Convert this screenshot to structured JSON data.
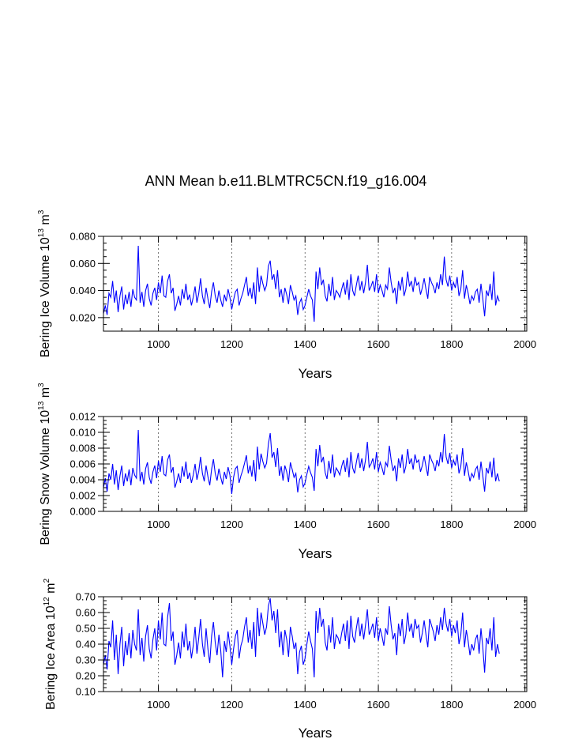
{
  "figure": {
    "title": "ANN Mean b.e11.BLMTRC5CN.f19_g16.004"
  },
  "colors": {
    "series": "#0000ff",
    "axes": "#000000",
    "grid": "#555555"
  },
  "chart_data": [
    {
      "type": "line",
      "ylabel": {
        "base": "Bering Ice Volume 10",
        "exp1": "13",
        "mid": " m",
        "exp2": "3"
      },
      "xlabel": "Years",
      "xlim": [
        850,
        2005
      ],
      "ylim": [
        0.01,
        0.08
      ],
      "xticks": [
        1000,
        1200,
        1400,
        1600,
        1800,
        2000
      ],
      "xtick_labels": [
        "1000",
        "1200",
        "1400",
        "1600",
        "1800",
        "2000"
      ],
      "yticks": [
        0.02,
        0.04,
        0.06,
        0.08
      ],
      "ytick_labels": [
        "0.020",
        "0.040",
        "0.060",
        "0.080"
      ],
      "grid_x": true,
      "series": [
        {
          "name": "Bering Ice Volume",
          "x_start": 850,
          "x_step": 5,
          "values": [
            0.023,
            0.029,
            0.022,
            0.038,
            0.035,
            0.047,
            0.031,
            0.04,
            0.024,
            0.036,
            0.043,
            0.026,
            0.037,
            0.03,
            0.039,
            0.028,
            0.041,
            0.035,
            0.033,
            0.073,
            0.031,
            0.039,
            0.028,
            0.04,
            0.045,
            0.034,
            0.029,
            0.038,
            0.042,
            0.033,
            0.046,
            0.038,
            0.051,
            0.036,
            0.035,
            0.047,
            0.052,
            0.038,
            0.042,
            0.025,
            0.03,
            0.036,
            0.029,
            0.041,
            0.034,
            0.045,
            0.033,
            0.037,
            0.029,
            0.035,
            0.043,
            0.031,
            0.038,
            0.049,
            0.036,
            0.03,
            0.042,
            0.034,
            0.027,
            0.039,
            0.046,
            0.036,
            0.031,
            0.04,
            0.033,
            0.028,
            0.037,
            0.032,
            0.041,
            0.035,
            0.026,
            0.033,
            0.039,
            0.041,
            0.029,
            0.034,
            0.038,
            0.044,
            0.05,
            0.036,
            0.042,
            0.034,
            0.046,
            0.03,
            0.057,
            0.039,
            0.051,
            0.045,
            0.04,
            0.044,
            0.058,
            0.062,
            0.048,
            0.052,
            0.041,
            0.055,
            0.035,
            0.041,
            0.031,
            0.042,
            0.037,
            0.03,
            0.044,
            0.039,
            0.033,
            0.036,
            0.022,
            0.031,
            0.034,
            0.026,
            0.029,
            0.035,
            0.041,
            0.036,
            0.033,
            0.017,
            0.054,
            0.041,
            0.057,
            0.044,
            0.048,
            0.036,
            0.032,
            0.045,
            0.036,
            0.05,
            0.033,
            0.04,
            0.038,
            0.035,
            0.041,
            0.046,
            0.037,
            0.048,
            0.033,
            0.052,
            0.04,
            0.036,
            0.044,
            0.051,
            0.04,
            0.047,
            0.038,
            0.046,
            0.059,
            0.04,
            0.043,
            0.047,
            0.039,
            0.052,
            0.038,
            0.044,
            0.04,
            0.035,
            0.044,
            0.041,
            0.057,
            0.046,
            0.038,
            0.042,
            0.03,
            0.047,
            0.04,
            0.05,
            0.036,
            0.041,
            0.054,
            0.043,
            0.047,
            0.039,
            0.05,
            0.044,
            0.046,
            0.037,
            0.042,
            0.049,
            0.041,
            0.034,
            0.05,
            0.046,
            0.043,
            0.038,
            0.046,
            0.041,
            0.052,
            0.044,
            0.065,
            0.048,
            0.043,
            0.051,
            0.04,
            0.046,
            0.042,
            0.05,
            0.036,
            0.041,
            0.055,
            0.034,
            0.044,
            0.038,
            0.03,
            0.036,
            0.033,
            0.039,
            0.041,
            0.031,
            0.045,
            0.034,
            0.021,
            0.04,
            0.036,
            0.045,
            0.033,
            0.054,
            0.029,
            0.036,
            0.032
          ]
        }
      ]
    },
    {
      "type": "line",
      "ylabel": {
        "base": "Bering Snow Volume 10",
        "exp1": "13",
        "mid": " m",
        "exp2": "3"
      },
      "xlabel": "Years",
      "xlim": [
        850,
        2005
      ],
      "ylim": [
        0.0,
        0.012
      ],
      "xticks": [
        1000,
        1200,
        1400,
        1600,
        1800,
        2000
      ],
      "xtick_labels": [
        "1000",
        "1200",
        "1400",
        "1600",
        "1800",
        "2000"
      ],
      "yticks": [
        0.0,
        0.002,
        0.004,
        0.006,
        0.008,
        0.01,
        0.012
      ],
      "ytick_labels": [
        "0.000",
        "0.002",
        "0.004",
        "0.006",
        "0.008",
        "0.010",
        "0.012"
      ],
      "grid_x": true,
      "series": [
        {
          "name": "Bering Snow Volume",
          "x_start": 850,
          "x_step": 5,
          "values": [
            0.003,
            0.0042,
            0.0025,
            0.0048,
            0.004,
            0.006,
            0.0034,
            0.0052,
            0.0027,
            0.0045,
            0.0058,
            0.0032,
            0.0048,
            0.0038,
            0.0053,
            0.0033,
            0.0055,
            0.0046,
            0.0042,
            0.0103,
            0.0038,
            0.005,
            0.0034,
            0.0054,
            0.0062,
            0.0043,
            0.0035,
            0.005,
            0.0058,
            0.0042,
            0.0064,
            0.005,
            0.007,
            0.0047,
            0.0045,
            0.0065,
            0.0072,
            0.0049,
            0.0056,
            0.003,
            0.0038,
            0.0048,
            0.0036,
            0.0057,
            0.0044,
            0.0063,
            0.0041,
            0.0049,
            0.0036,
            0.0046,
            0.006,
            0.004,
            0.0051,
            0.0069,
            0.0048,
            0.0038,
            0.0058,
            0.0044,
            0.0033,
            0.0053,
            0.0066,
            0.0048,
            0.0039,
            0.0054,
            0.0043,
            0.0034,
            0.005,
            0.0041,
            0.0056,
            0.0046,
            0.0022,
            0.0043,
            0.0054,
            0.0057,
            0.0036,
            0.0045,
            0.0052,
            0.0061,
            0.0071,
            0.0048,
            0.0058,
            0.0044,
            0.0065,
            0.0038,
            0.0082,
            0.0053,
            0.0073,
            0.0063,
            0.0055,
            0.0061,
            0.0085,
            0.0099,
            0.0068,
            0.0075,
            0.0056,
            0.008,
            0.0045,
            0.0057,
            0.0039,
            0.0058,
            0.005,
            0.0037,
            0.0062,
            0.0053,
            0.0043,
            0.0048,
            0.0024,
            0.004,
            0.0045,
            0.0031,
            0.0036,
            0.0047,
            0.0057,
            0.0049,
            0.0043,
            0.0026,
            0.0079,
            0.0057,
            0.0084,
            0.0062,
            0.0069,
            0.0049,
            0.0041,
            0.0064,
            0.0048,
            0.0072,
            0.0043,
            0.0055,
            0.0051,
            0.0046,
            0.0057,
            0.0065,
            0.005,
            0.0068,
            0.0043,
            0.0075,
            0.0055,
            0.0048,
            0.0062,
            0.0074,
            0.0055,
            0.0067,
            0.0051,
            0.0065,
            0.0088,
            0.0056,
            0.006,
            0.0067,
            0.0053,
            0.0075,
            0.005,
            0.0062,
            0.0055,
            0.0046,
            0.0062,
            0.0057,
            0.0083,
            0.0065,
            0.0051,
            0.0058,
            0.0038,
            0.0067,
            0.0055,
            0.0072,
            0.0048,
            0.0057,
            0.0079,
            0.006,
            0.0067,
            0.0053,
            0.0072,
            0.0062,
            0.0065,
            0.005,
            0.0058,
            0.007,
            0.0057,
            0.0045,
            0.0072,
            0.0065,
            0.006,
            0.0051,
            0.0065,
            0.0057,
            0.0075,
            0.0062,
            0.0098,
            0.0069,
            0.006,
            0.0074,
            0.0055,
            0.0065,
            0.0058,
            0.0072,
            0.0048,
            0.0057,
            0.008,
            0.0045,
            0.0062,
            0.0051,
            0.0038,
            0.0048,
            0.0043,
            0.0053,
            0.0057,
            0.004,
            0.0063,
            0.0045,
            0.0025,
            0.0055,
            0.0048,
            0.0063,
            0.0043,
            0.0068,
            0.0038,
            0.0048,
            0.0038
          ]
        }
      ]
    },
    {
      "type": "line",
      "ylabel": {
        "base": "Bering Ice Area 10",
        "exp1": "12",
        "mid": " m",
        "exp2": "2"
      },
      "xlabel": "Years",
      "xlim": [
        850,
        2005
      ],
      "ylim": [
        0.1,
        0.7
      ],
      "xticks": [
        1000,
        1200,
        1400,
        1600,
        1800,
        2000
      ],
      "xtick_labels": [
        "1000",
        "1200",
        "1400",
        "1600",
        "1800",
        "2000"
      ],
      "yticks": [
        0.1,
        0.2,
        0.3,
        0.4,
        0.5,
        0.6,
        0.7
      ],
      "ytick_labels": [
        "0.10",
        "0.20",
        "0.30",
        "0.40",
        "0.50",
        "0.60",
        "0.70"
      ],
      "grid_x": true,
      "series": [
        {
          "name": "Bering Ice Area",
          "x_start": 850,
          "x_step": 5,
          "values": [
            0.27,
            0.33,
            0.24,
            0.42,
            0.38,
            0.55,
            0.3,
            0.46,
            0.21,
            0.4,
            0.51,
            0.26,
            0.42,
            0.33,
            0.47,
            0.31,
            0.49,
            0.4,
            0.36,
            0.62,
            0.33,
            0.44,
            0.29,
            0.45,
            0.52,
            0.37,
            0.31,
            0.43,
            0.5,
            0.36,
            0.55,
            0.43,
            0.6,
            0.4,
            0.39,
            0.57,
            0.66,
            0.42,
            0.48,
            0.27,
            0.33,
            0.41,
            0.31,
            0.48,
            0.38,
            0.53,
            0.36,
            0.42,
            0.31,
            0.39,
            0.51,
            0.34,
            0.44,
            0.56,
            0.4,
            0.32,
            0.5,
            0.37,
            0.28,
            0.45,
            0.54,
            0.41,
            0.33,
            0.46,
            0.36,
            0.19,
            0.42,
            0.35,
            0.48,
            0.39,
            0.27,
            0.37,
            0.45,
            0.49,
            0.31,
            0.39,
            0.43,
            0.51,
            0.57,
            0.41,
            0.49,
            0.37,
            0.54,
            0.32,
            0.63,
            0.45,
            0.6,
            0.53,
            0.46,
            0.51,
            0.64,
            0.69,
            0.55,
            0.61,
            0.47,
            0.62,
            0.38,
            0.48,
            0.33,
            0.49,
            0.43,
            0.32,
            0.51,
            0.45,
            0.37,
            0.41,
            0.21,
            0.35,
            0.39,
            0.27,
            0.31,
            0.4,
            0.48,
            0.42,
            0.37,
            0.19,
            0.61,
            0.47,
            0.63,
            0.51,
            0.56,
            0.41,
            0.36,
            0.52,
            0.41,
            0.57,
            0.37,
            0.46,
            0.44,
            0.4,
            0.47,
            0.53,
            0.42,
            0.55,
            0.37,
            0.58,
            0.45,
            0.41,
            0.5,
            0.57,
            0.45,
            0.53,
            0.43,
            0.52,
            0.62,
            0.46,
            0.49,
            0.53,
            0.44,
            0.57,
            0.42,
            0.5,
            0.45,
            0.39,
            0.5,
            0.46,
            0.64,
            0.52,
            0.43,
            0.47,
            0.33,
            0.53,
            0.45,
            0.56,
            0.4,
            0.46,
            0.6,
            0.48,
            0.53,
            0.44,
            0.56,
            0.5,
            0.52,
            0.41,
            0.47,
            0.55,
            0.46,
            0.38,
            0.56,
            0.52,
            0.48,
            0.42,
            0.52,
            0.46,
            0.57,
            0.49,
            0.63,
            0.53,
            0.48,
            0.56,
            0.45,
            0.52,
            0.47,
            0.55,
            0.4,
            0.46,
            0.6,
            0.38,
            0.49,
            0.42,
            0.33,
            0.4,
            0.36,
            0.43,
            0.46,
            0.34,
            0.5,
            0.38,
            0.22,
            0.44,
            0.4,
            0.5,
            0.36,
            0.57,
            0.32,
            0.4,
            0.34
          ]
        }
      ]
    }
  ]
}
